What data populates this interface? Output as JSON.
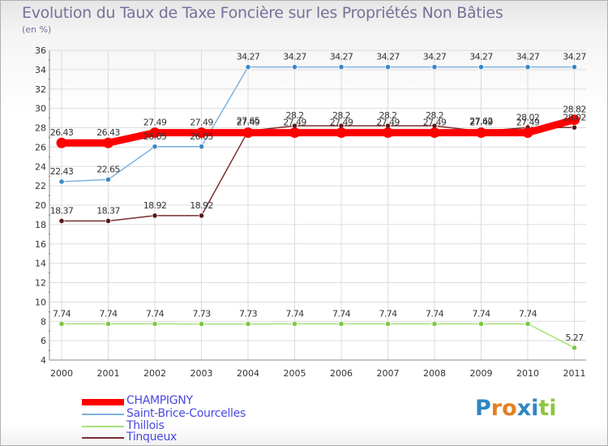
{
  "title": "Evolution du Taux de Taxe Foncière sur les Propriétés Non Bâties",
  "unit_label": "(en %)",
  "brand": {
    "letters": [
      "P",
      "r",
      "o",
      "x",
      "i",
      "t",
      "i"
    ],
    "colors": [
      "#2e86c1",
      "#e67e22",
      "#e67e22",
      "#2e86c1",
      "#2e86c1",
      "#8cc63f",
      "#8cc63f"
    ]
  },
  "chart_data": {
    "type": "line",
    "title": "Evolution du Taux de Taxe Foncière sur les Propriétés Non Bâties",
    "ylabel": "(en %)",
    "xlabel": "",
    "x": [
      "2000",
      "2001",
      "2002",
      "2003",
      "2004",
      "2005",
      "2006",
      "2007",
      "2008",
      "2009",
      "2010",
      "2011"
    ],
    "ylim": [
      4,
      36
    ],
    "yticks": [
      4,
      6,
      8,
      10,
      12,
      14,
      16,
      18,
      20,
      22,
      24,
      26,
      28,
      30,
      32,
      34,
      36
    ],
    "grid": true,
    "legend_position": "bottom-left",
    "series": [
      {
        "name": "CHAMPIGNY",
        "color": "#ff0000",
        "marker_color": "#ff0000",
        "style": "thick",
        "values": [
          26.43,
          26.43,
          27.49,
          27.49,
          27.49,
          27.49,
          27.49,
          27.49,
          27.49,
          27.49,
          27.49,
          28.82
        ],
        "labels": [
          "26.43",
          "26.43",
          "27.49",
          "27.49",
          "27.49",
          "27.49",
          "27.49",
          "27.49",
          "27.49",
          "27.49",
          "27.49",
          "28.82"
        ]
      },
      {
        "name": "Saint-Brice-Courcelles",
        "color": "#7fb2df",
        "marker_color": "#3a88c8",
        "style": "thin",
        "values": [
          22.43,
          22.65,
          26.05,
          26.05,
          34.27,
          34.27,
          34.27,
          34.27,
          34.27,
          34.27,
          34.27,
          34.27
        ],
        "labels": [
          "22.43",
          "22.65",
          "26.05",
          "26.05",
          "34.27",
          "34.27",
          "34.27",
          "34.27",
          "34.27",
          "34.27",
          "34.27",
          "34.27"
        ]
      },
      {
        "name": "Thillois",
        "color": "#a8e07a",
        "marker_color": "#7ac943",
        "style": "thin",
        "values": [
          7.74,
          7.74,
          7.74,
          7.73,
          7.73,
          7.74,
          7.74,
          7.74,
          7.74,
          7.74,
          7.74,
          5.27
        ],
        "labels": [
          "7.74",
          "7.74",
          "7.74",
          "7.73",
          "7.73",
          "7.74",
          "7.74",
          "7.74",
          "7.74",
          "7.74",
          "7.74",
          "5.27"
        ]
      },
      {
        "name": "Tinqueux",
        "color": "#7a2e2e",
        "marker_color": "#5a1a1a",
        "style": "thin",
        "values": [
          18.37,
          18.37,
          18.92,
          18.92,
          27.65,
          28.2,
          28.2,
          28.2,
          28.2,
          27.62,
          28.02,
          28.02
        ],
        "labels": [
          "18.37",
          "18.37",
          "18.92",
          "18.92",
          "27.65",
          "28.2",
          "28.2",
          "28.2",
          "28.2",
          "27.62",
          "28.02",
          "28.02"
        ]
      }
    ]
  }
}
